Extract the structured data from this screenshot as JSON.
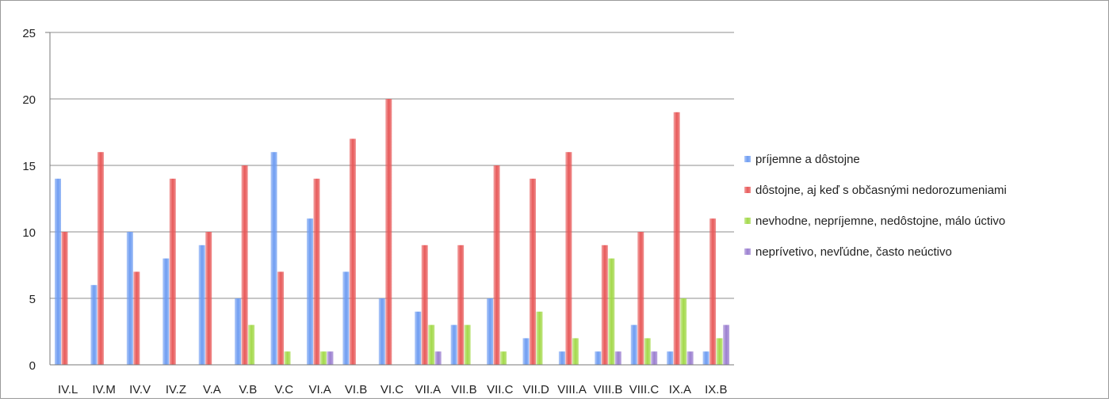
{
  "chart_data": {
    "type": "bar",
    "title": "",
    "xlabel": "",
    "ylabel": "",
    "ylim": [
      0,
      25
    ],
    "yticks": [
      0,
      5,
      10,
      15,
      20,
      25
    ],
    "grid": true,
    "legend_position": "right",
    "categories": [
      "IV.L",
      "IV.M",
      "IV.V",
      "IV.Z",
      "V.A",
      "V.B",
      "V.C",
      "VI.A",
      "VI.B",
      "VI.C",
      "VII.A",
      "VII.B",
      "VII.C",
      "VII.D",
      "VIII.A",
      "VIII.B",
      "VIII.C",
      "IX.A",
      "IX.B"
    ],
    "series": [
      {
        "name": "príjemne a dôstojne",
        "color": "#6f9df2",
        "values": [
          14,
          6,
          10,
          8,
          9,
          5,
          16,
          11,
          7,
          5,
          4,
          3,
          5,
          2,
          1,
          1,
          3,
          1,
          1
        ]
      },
      {
        "name": "dôstojne, aj keď s občasnými nedorozumeniami",
        "color": "#e85a5a",
        "values": [
          10,
          16,
          7,
          14,
          10,
          15,
          7,
          14,
          17,
          20,
          9,
          9,
          15,
          14,
          16,
          9,
          10,
          19,
          11
        ]
      },
      {
        "name": "nevhodne, nepríjemne, nedôstojne, málo úctivo",
        "color": "#a3d94a",
        "values": [
          0,
          0,
          0,
          0,
          0,
          3,
          1,
          1,
          0,
          0,
          3,
          3,
          1,
          4,
          2,
          8,
          2,
          5,
          2
        ]
      },
      {
        "name": "neprívetivo, nevľúdne, často neúctivo",
        "color": "#9b7fd0",
        "values": [
          0,
          0,
          0,
          0,
          0,
          0,
          0,
          1,
          0,
          0,
          1,
          0,
          0,
          0,
          0,
          1,
          1,
          1,
          3
        ]
      }
    ]
  }
}
